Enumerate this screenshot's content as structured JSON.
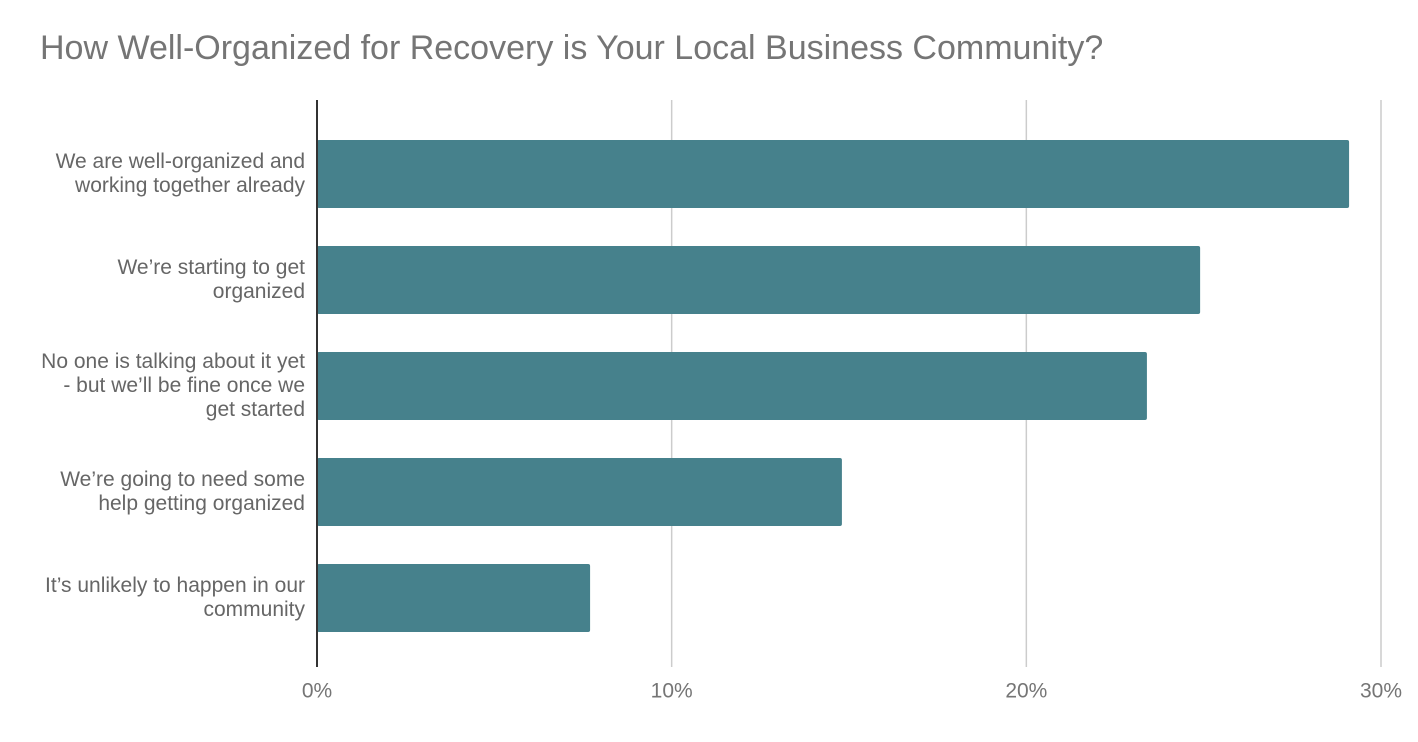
{
  "chart_data": {
    "type": "bar",
    "orientation": "horizontal",
    "title": "How Well-Organized for Recovery is Your Local Business Community?",
    "categories": [
      "We are well-organized and working together already",
      "We’re starting to get organized",
      "No one is talking about it yet - but we’ll be fine once we get started",
      "We’re going to need some help getting organized",
      "It’s unlikely to happen in our community"
    ],
    "values": [
      29.1,
      24.9,
      23.4,
      14.8,
      7.7
    ],
    "color": "#46818c",
    "xlim": [
      0,
      30
    ],
    "xticks": [
      {
        "value": 0,
        "label": "0%"
      },
      {
        "value": 10,
        "label": "10%"
      },
      {
        "value": 20,
        "label": "20%"
      },
      {
        "value": 30,
        "label": "30%"
      }
    ],
    "grid": true
  }
}
